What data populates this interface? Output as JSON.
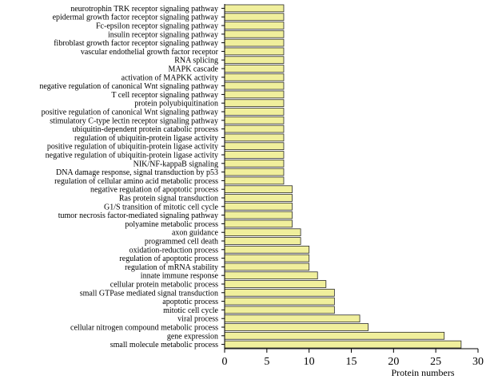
{
  "chart_data": {
    "type": "bar",
    "orientation": "horizontal",
    "title": "",
    "xlabel": "Protein numbers",
    "ylabel": "",
    "xlim": [
      0,
      30
    ],
    "xticks": [
      0,
      5,
      10,
      15,
      20,
      25,
      30
    ],
    "bar_color": "#f0ef9c",
    "categories": [
      "neurotrophin TRK receptor signaling pathway",
      "epidermal growth factor receptor signaling pathway",
      "Fc-epsilon receptor signaling pathway",
      "insulin receptor signaling pathway",
      "fibroblast growth factor receptor signaling pathway",
      "vascular endothelial growth factor receptor",
      "RNA splicing",
      "MAPK cascade",
      "activation of MAPKK activity",
      "negative regulation of canonical Wnt signaling pathway",
      "T cell receptor signaling pathway",
      "protein polyubiquitination",
      "positive regulation of canonical Wnt signaling pathway",
      "stimulatory C-type lectin receptor signaling pathway",
      "ubiquitin-dependent protein catabolic process",
      "regulation of ubiquitin-protein ligase activity",
      "positive regulation of ubiquitin-protein ligase activity",
      "negative regulation of ubiquitin-protein ligase activity",
      "NIK/NF-kappaB signaling",
      "DNA damage response, signal transduction by p53",
      "regulation of cellular amino acid metabolic process",
      "negative regulation of apoptotic process",
      "Ras protein signal transduction",
      "G1/S transition of mitotic cell cycle",
      "tumor necrosis factor-mediated signaling pathway",
      "polyamine metabolic process",
      "axon guidance",
      "programmed cell death",
      "oxidation-reduction process",
      "regulation of apoptotic process",
      "regulation of mRNA stability",
      "innate immune response",
      "cellular protein metabolic process",
      "small GTPase mediated signal transduction",
      "apoptotic process",
      "mitotic cell cycle",
      "viral process",
      "cellular nitrogen compound metabolic process",
      "gene expression",
      "small molecule metabolic process"
    ],
    "values": [
      7,
      7,
      7,
      7,
      7,
      7,
      7,
      7,
      7,
      7,
      7,
      7,
      7,
      7,
      7,
      7,
      7,
      7,
      7,
      7,
      7,
      8,
      8,
      8,
      8,
      8,
      9,
      9,
      10,
      10,
      10,
      11,
      12,
      13,
      13,
      13,
      16,
      17,
      26,
      28
    ]
  }
}
